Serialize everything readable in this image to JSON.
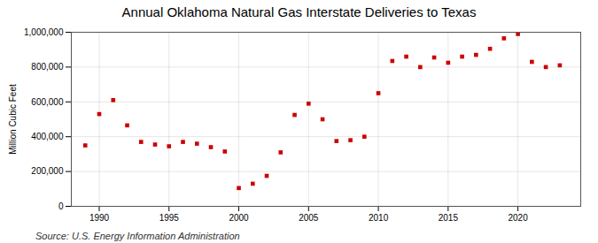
{
  "chart_data": {
    "type": "scatter",
    "title": "Annual Oklahoma Natural Gas Interstate Deliveries to Texas",
    "ylabel": "Million Cubic Feet",
    "source": "Source: U.S. Energy Information Administration",
    "x": [
      1989,
      1990,
      1991,
      1992,
      1993,
      1994,
      1995,
      1996,
      1997,
      1998,
      1999,
      2000,
      2001,
      2002,
      2003,
      2004,
      2005,
      2006,
      2007,
      2008,
      2009,
      2010,
      2011,
      2012,
      2013,
      2014,
      2015,
      2016,
      2017,
      2018,
      2019,
      2020,
      2021,
      2022,
      2023
    ],
    "values": [
      350000,
      530000,
      610000,
      465000,
      370000,
      355000,
      345000,
      370000,
      360000,
      340000,
      315000,
      105000,
      130000,
      175000,
      310000,
      525000,
      590000,
      500000,
      375000,
      380000,
      400000,
      650000,
      835000,
      860000,
      800000,
      855000,
      825000,
      860000,
      870000,
      905000,
      965000,
      990000,
      830000,
      800000,
      810000
    ],
    "color": "#CC0000",
    "marker": "square",
    "xlim": [
      1988.0,
      2024.5
    ],
    "xticks": [
      1990,
      1995,
      2000,
      2005,
      2010,
      2015,
      2020
    ],
    "ylim": [
      0,
      1000000
    ],
    "yticks": [
      0,
      {
        "value": 200000,
        "label": "200,000"
      },
      {
        "value": 400000,
        "label": "400,000"
      },
      {
        "value": 600000,
        "label": "600,000"
      },
      {
        "value": 800000,
        "label": "800,000"
      },
      {
        "value": 1000000,
        "label": "1,000,000"
      }
    ],
    "grid": true
  }
}
